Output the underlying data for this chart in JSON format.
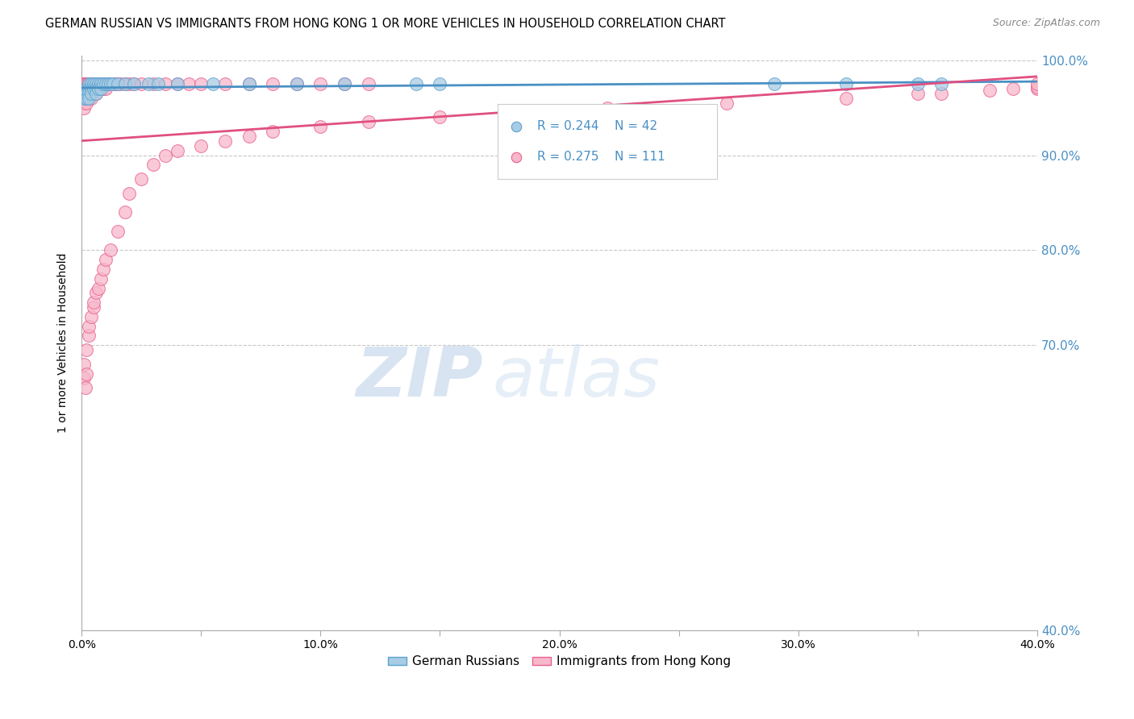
{
  "title": "GERMAN RUSSIAN VS IMMIGRANTS FROM HONG KONG 1 OR MORE VEHICLES IN HOUSEHOLD CORRELATION CHART",
  "source": "Source: ZipAtlas.com",
  "ylabel": "1 or more Vehicles in Household",
  "xlim": [
    0.0,
    0.4
  ],
  "ylim": [
    0.4,
    1.005
  ],
  "blue_color": "#a8cce4",
  "blue_edge_color": "#5ba3d0",
  "pink_color": "#f7b8ca",
  "pink_edge_color": "#e86090",
  "blue_line_color": "#4a90c4",
  "pink_line_color": "#e05080",
  "right_axis_color": "#4a90c4",
  "legend_R_blue": "R = 0.244",
  "legend_N_blue": "N = 42",
  "legend_R_pink": "R = 0.275",
  "legend_N_pink": "N = 111",
  "legend_label_blue": "German Russians",
  "legend_label_pink": "Immigrants from Hong Kong",
  "watermark_zip": "ZIP",
  "watermark_atlas": "atlas",
  "blue_x": [
    0.001,
    0.001,
    0.002,
    0.002,
    0.002,
    0.003,
    0.003,
    0.003,
    0.003,
    0.004,
    0.004,
    0.004,
    0.005,
    0.005,
    0.006,
    0.006,
    0.006,
    0.007,
    0.007,
    0.008,
    0.008,
    0.009,
    0.01,
    0.011,
    0.012,
    0.013,
    0.015,
    0.018,
    0.022,
    0.028,
    0.032,
    0.04,
    0.055,
    0.07,
    0.09,
    0.11,
    0.14,
    0.15,
    0.29,
    0.32,
    0.35,
    0.36
  ],
  "blue_y": [
    0.965,
    0.96,
    0.97,
    0.965,
    0.96,
    0.975,
    0.97,
    0.965,
    0.96,
    0.975,
    0.97,
    0.965,
    0.975,
    0.97,
    0.975,
    0.97,
    0.965,
    0.975,
    0.97,
    0.975,
    0.97,
    0.975,
    0.975,
    0.975,
    0.975,
    0.975,
    0.975,
    0.975,
    0.975,
    0.975,
    0.975,
    0.975,
    0.975,
    0.975,
    0.975,
    0.975,
    0.975,
    0.975,
    0.975,
    0.975,
    0.975,
    0.975
  ],
  "pink_x": [
    0.0005,
    0.0005,
    0.0005,
    0.001,
    0.001,
    0.001,
    0.001,
    0.001,
    0.001,
    0.0015,
    0.0015,
    0.0015,
    0.002,
    0.002,
    0.002,
    0.002,
    0.002,
    0.0025,
    0.0025,
    0.0025,
    0.003,
    0.003,
    0.003,
    0.003,
    0.0035,
    0.0035,
    0.004,
    0.004,
    0.004,
    0.004,
    0.005,
    0.005,
    0.005,
    0.006,
    0.006,
    0.006,
    0.007,
    0.007,
    0.008,
    0.008,
    0.009,
    0.009,
    0.01,
    0.01,
    0.011,
    0.012,
    0.013,
    0.014,
    0.015,
    0.016,
    0.018,
    0.02,
    0.022,
    0.025,
    0.03,
    0.035,
    0.04,
    0.045,
    0.05,
    0.06,
    0.07,
    0.08,
    0.09,
    0.1,
    0.11,
    0.12,
    0.001,
    0.001,
    0.0015,
    0.002,
    0.002,
    0.003,
    0.003,
    0.004,
    0.005,
    0.005,
    0.006,
    0.007,
    0.008,
    0.009,
    0.01,
    0.012,
    0.015,
    0.018,
    0.02,
    0.025,
    0.03,
    0.035,
    0.04,
    0.05,
    0.06,
    0.07,
    0.08,
    0.1,
    0.12,
    0.15,
    0.18,
    0.22,
    0.27,
    0.32,
    0.35,
    0.36,
    0.38,
    0.39,
    0.4,
    0.4,
    0.4
  ],
  "pink_y": [
    0.975,
    0.97,
    0.965,
    0.975,
    0.97,
    0.965,
    0.96,
    0.955,
    0.95,
    0.975,
    0.97,
    0.965,
    0.975,
    0.97,
    0.965,
    0.96,
    0.955,
    0.975,
    0.97,
    0.965,
    0.975,
    0.97,
    0.965,
    0.96,
    0.975,
    0.97,
    0.975,
    0.97,
    0.965,
    0.96,
    0.975,
    0.97,
    0.965,
    0.975,
    0.97,
    0.965,
    0.975,
    0.97,
    0.975,
    0.97,
    0.975,
    0.97,
    0.975,
    0.97,
    0.975,
    0.975,
    0.975,
    0.975,
    0.975,
    0.975,
    0.975,
    0.975,
    0.975,
    0.975,
    0.975,
    0.975,
    0.975,
    0.975,
    0.975,
    0.975,
    0.975,
    0.975,
    0.975,
    0.975,
    0.975,
    0.975,
    0.68,
    0.665,
    0.655,
    0.695,
    0.67,
    0.71,
    0.72,
    0.73,
    0.74,
    0.745,
    0.755,
    0.76,
    0.77,
    0.78,
    0.79,
    0.8,
    0.82,
    0.84,
    0.86,
    0.875,
    0.89,
    0.9,
    0.905,
    0.91,
    0.915,
    0.92,
    0.925,
    0.93,
    0.935,
    0.94,
    0.945,
    0.95,
    0.955,
    0.96,
    0.965,
    0.965,
    0.968,
    0.97,
    0.97,
    0.972,
    0.975
  ]
}
